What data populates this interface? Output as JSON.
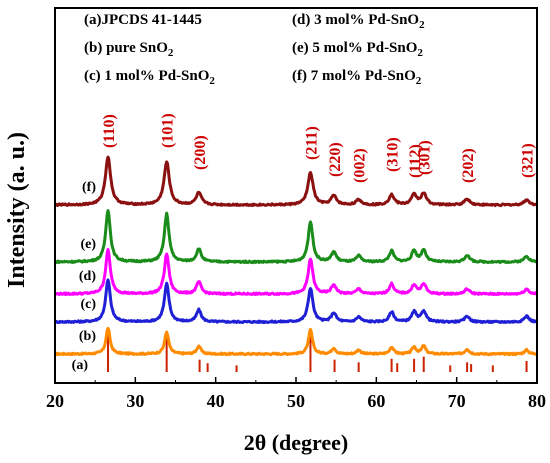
{
  "chart_data": {
    "type": "line",
    "xlabel": "2θ  (degree)",
    "ylabel": "Intensity  (a. u.)",
    "xlim": [
      20,
      80
    ],
    "xticks": [
      "20",
      "30",
      "40",
      "50",
      "60",
      "70",
      "80"
    ],
    "legend": [
      {
        "text": "(a)JPCDS 41-1445"
      },
      {
        "text": "(b) pure SnO",
        "sub": "2"
      },
      {
        "text": "(c) 1 mol% Pd-SnO",
        "sub": "2"
      },
      {
        "text": "(d) 3 mol% Pd-SnO",
        "sub": "2"
      },
      {
        "text": "(e) 5 mol% Pd-SnO",
        "sub": "2"
      },
      {
        "text": "(f) 7 mol% Pd-SnO",
        "sub": "2"
      }
    ],
    "reference": {
      "name": "JPCDS 41-1445",
      "label": "(a)",
      "color": "#cc2200",
      "peaks": [
        {
          "two_theta": 26.6,
          "rel_intensity": 1.0
        },
        {
          "two_theta": 33.9,
          "rel_intensity": 0.82
        },
        {
          "two_theta": 38.0,
          "rel_intensity": 0.28
        },
        {
          "two_theta": 39.0,
          "rel_intensity": 0.2
        },
        {
          "two_theta": 42.6,
          "rel_intensity": 0.15
        },
        {
          "two_theta": 51.8,
          "rel_intensity": 0.95
        },
        {
          "two_theta": 54.8,
          "rel_intensity": 0.28
        },
        {
          "two_theta": 57.8,
          "rel_intensity": 0.22
        },
        {
          "two_theta": 61.9,
          "rel_intensity": 0.3
        },
        {
          "two_theta": 62.6,
          "rel_intensity": 0.2
        },
        {
          "two_theta": 64.7,
          "rel_intensity": 0.3
        },
        {
          "two_theta": 65.9,
          "rel_intensity": 0.35
        },
        {
          "two_theta": 69.2,
          "rel_intensity": 0.15
        },
        {
          "two_theta": 71.3,
          "rel_intensity": 0.22
        },
        {
          "two_theta": 71.8,
          "rel_intensity": 0.18
        },
        {
          "two_theta": 74.5,
          "rel_intensity": 0.15
        },
        {
          "two_theta": 78.7,
          "rel_intensity": 0.25
        }
      ]
    },
    "series": [
      {
        "label": "(b)",
        "name": "pure SnO2",
        "color": "#ff8c00",
        "peaks": [
          {
            "two_theta": 26.6,
            "height": 26,
            "width": 0.3
          },
          {
            "two_theta": 33.9,
            "height": 22,
            "width": 0.3
          },
          {
            "two_theta": 37.9,
            "height": 8,
            "width": 0.3
          },
          {
            "two_theta": 51.8,
            "height": 24,
            "width": 0.3
          },
          {
            "two_theta": 54.7,
            "height": 6,
            "width": 0.3
          },
          {
            "two_theta": 57.8,
            "height": 4,
            "width": 0.3
          },
          {
            "two_theta": 61.9,
            "height": 7,
            "width": 0.3
          },
          {
            "two_theta": 64.7,
            "height": 7,
            "width": 0.3
          },
          {
            "two_theta": 65.9,
            "height": 8,
            "width": 0.3
          },
          {
            "two_theta": 71.3,
            "height": 5,
            "width": 0.3
          },
          {
            "two_theta": 78.7,
            "height": 4,
            "width": 0.3
          }
        ]
      },
      {
        "label": "(c)",
        "name": "1 mol% Pd-SnO2",
        "color": "#1f1fd6",
        "peaks": [
          {
            "two_theta": 26.6,
            "height": 42,
            "width": 0.35
          },
          {
            "two_theta": 33.9,
            "height": 38,
            "width": 0.35
          },
          {
            "two_theta": 37.9,
            "height": 12,
            "width": 0.35
          },
          {
            "two_theta": 51.8,
            "height": 34,
            "width": 0.35
          },
          {
            "two_theta": 54.7,
            "height": 9,
            "width": 0.35
          },
          {
            "two_theta": 57.8,
            "height": 5,
            "width": 0.35
          },
          {
            "two_theta": 61.9,
            "height": 10,
            "width": 0.35
          },
          {
            "two_theta": 64.7,
            "height": 10,
            "width": 0.35
          },
          {
            "two_theta": 65.9,
            "height": 11,
            "width": 0.35
          },
          {
            "two_theta": 71.3,
            "height": 6,
            "width": 0.35
          },
          {
            "two_theta": 78.7,
            "height": 6,
            "width": 0.35
          }
        ]
      },
      {
        "label": "(d)",
        "name": "3 mol% Pd-SnO2",
        "color": "#ff00ff",
        "peaks": [
          {
            "two_theta": 26.6,
            "height": 44,
            "width": 0.35
          },
          {
            "two_theta": 33.9,
            "height": 40,
            "width": 0.35
          },
          {
            "two_theta": 37.9,
            "height": 12,
            "width": 0.35
          },
          {
            "two_theta": 51.8,
            "height": 35,
            "width": 0.35
          },
          {
            "two_theta": 54.7,
            "height": 9,
            "width": 0.35
          },
          {
            "two_theta": 57.8,
            "height": 5,
            "width": 0.35
          },
          {
            "two_theta": 61.9,
            "height": 10,
            "width": 0.35
          },
          {
            "two_theta": 64.7,
            "height": 9,
            "width": 0.35
          },
          {
            "two_theta": 65.9,
            "height": 10,
            "width": 0.35
          },
          {
            "two_theta": 71.3,
            "height": 5,
            "width": 0.35
          },
          {
            "two_theta": 78.7,
            "height": 5,
            "width": 0.35
          }
        ]
      },
      {
        "label": "(e)",
        "name": "5 mol% Pd-SnO2",
        "color": "#1a8c1a",
        "peaks": [
          {
            "two_theta": 26.6,
            "height": 52,
            "width": 0.35
          },
          {
            "two_theta": 33.9,
            "height": 48,
            "width": 0.35
          },
          {
            "two_theta": 37.9,
            "height": 13,
            "width": 0.35
          },
          {
            "two_theta": 51.8,
            "height": 40,
            "width": 0.35
          },
          {
            "two_theta": 54.7,
            "height": 10,
            "width": 0.35
          },
          {
            "two_theta": 57.8,
            "height": 6,
            "width": 0.35
          },
          {
            "two_theta": 61.9,
            "height": 11,
            "width": 0.35
          },
          {
            "two_theta": 64.7,
            "height": 11,
            "width": 0.35
          },
          {
            "two_theta": 65.9,
            "height": 12,
            "width": 0.35
          },
          {
            "two_theta": 71.3,
            "height": 7,
            "width": 0.35
          },
          {
            "two_theta": 78.7,
            "height": 6,
            "width": 0.35
          }
        ]
      },
      {
        "label": "(f)",
        "name": "7 mol% Pd-SnO2",
        "color": "#8b1010",
        "peaks": [
          {
            "two_theta": 26.6,
            "height": 48,
            "width": 0.4
          },
          {
            "two_theta": 33.9,
            "height": 43,
            "width": 0.4
          },
          {
            "two_theta": 37.9,
            "height": 12,
            "width": 0.4
          },
          {
            "two_theta": 51.8,
            "height": 32,
            "width": 0.4
          },
          {
            "two_theta": 54.7,
            "height": 9,
            "width": 0.4
          },
          {
            "two_theta": 57.8,
            "height": 5,
            "width": 0.4
          },
          {
            "two_theta": 61.9,
            "height": 10,
            "width": 0.4
          },
          {
            "two_theta": 64.7,
            "height": 10,
            "width": 0.4
          },
          {
            "two_theta": 65.9,
            "height": 11,
            "width": 0.4
          },
          {
            "two_theta": 71.3,
            "height": 6,
            "width": 0.4
          },
          {
            "two_theta": 78.7,
            "height": 5,
            "width": 0.4
          }
        ]
      }
    ],
    "hkl_color": "#cc0000",
    "hkl_labels": [
      {
        "text": "(110)",
        "two_theta": 26.6
      },
      {
        "text": "(101)",
        "two_theta": 33.9
      },
      {
        "text": "(200)",
        "two_theta": 37.9
      },
      {
        "text": "(211)",
        "two_theta": 51.8
      },
      {
        "text": "(220)",
        "two_theta": 54.7
      },
      {
        "text": "(002)",
        "two_theta": 57.8
      },
      {
        "text": "(310)",
        "two_theta": 61.9
      },
      {
        "text": "(112)",
        "two_theta": 64.7
      },
      {
        "text": "(301)",
        "two_theta": 65.9
      },
      {
        "text": "(202)",
        "two_theta": 71.3
      },
      {
        "text": "(321)",
        "two_theta": 78.7
      }
    ]
  }
}
